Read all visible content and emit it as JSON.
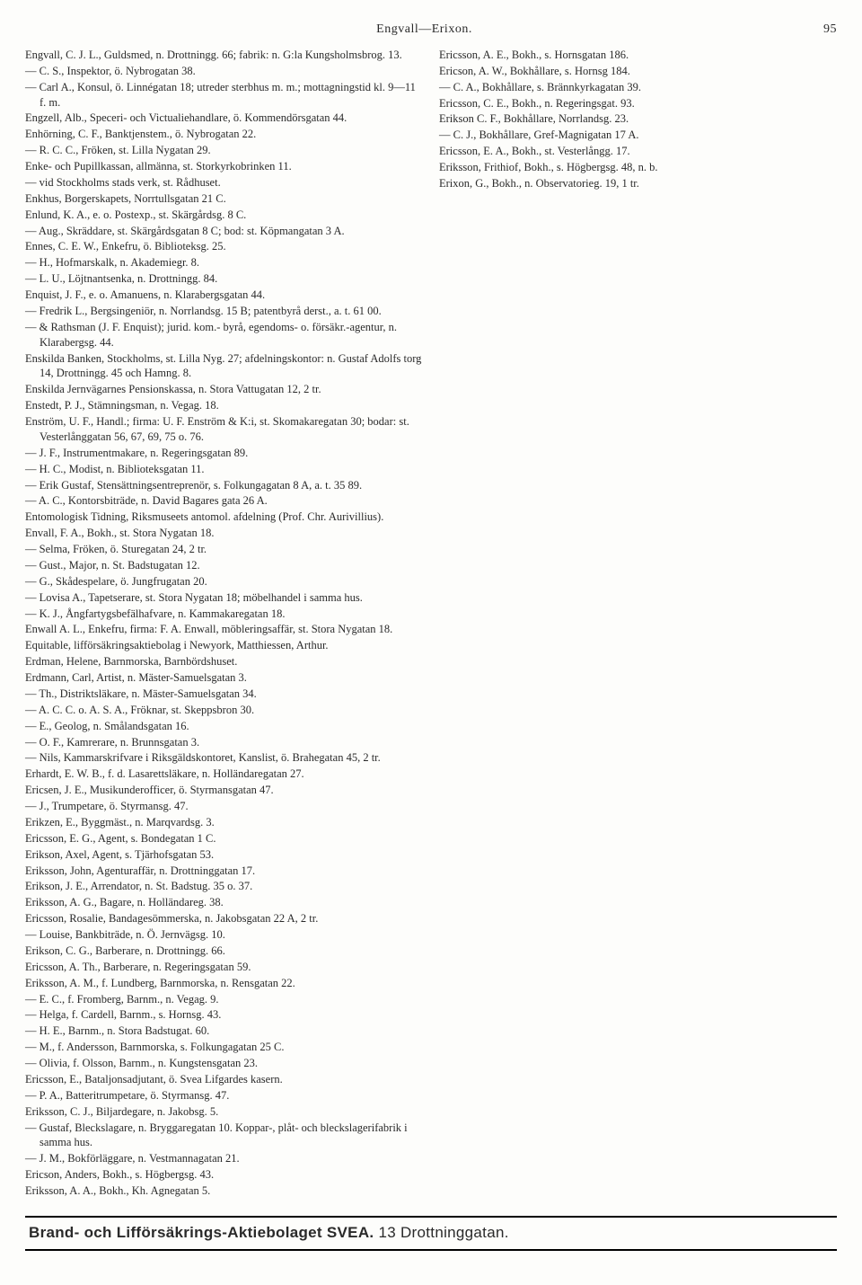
{
  "header": {
    "title": "Engvall—Erixon.",
    "pagenum": "95"
  },
  "entries": [
    "Engvall, C. J. L., Guldsmed, n. Drottningg. 66; fabrik: n. G:la Kungsholmsbrog. 13.",
    "— C. S., Inspektor, ö. Nybrogatan 38.",
    "— Carl A., Konsul, ö. Linnégatan 18; utreder sterbhus m. m.; mottagningstid kl. 9—11 f. m.",
    "Engzell, Alb., Speceri- och Victualiehandlare, ö. Kommendörsgatan 44.",
    "Enhörning, C. F., Banktjenstem., ö. Nybrogatan 22.",
    "— R. C. C., Fröken, st. Lilla Nygatan 29.",
    "Enke- och Pupillkassan, allmänna, st. Storkyrkobrinken 11.",
    "— vid Stockholms stads verk, st. Rådhuset.",
    "Enkhus, Borgerskapets, Norrtullsgatan 21 C.",
    "Enlund, K. A., e. o. Postexp., st. Skärgårdsg. 8 C.",
    "— Aug., Skräddare, st. Skärgårdsgatan 8 C; bod: st. Köpmangatan 3 A.",
    "Ennes, C. E. W., Enkefru, ö. Biblioteksg. 25.",
    "— H., Hofmarskalk, n. Akademiegr. 8.",
    "— L. U., Löjtnantsenka, n. Drottningg. 84.",
    "Enquist, J. F., e. o. Amanuens, n. Klarabergsgatan 44.",
    "— Fredrik L., Bergsingeniör, n. Norrlandsg. 15 B; patentbyrå derst., a. t. 61 00.",
    "— & Rathsman (J. F. Enquist); jurid. kom.- byrå, egendoms- o. försäkr.-agentur, n. Klarabergsg. 44.",
    "Enskilda Banken, Stockholms, st. Lilla Nyg. 27; afdelningskontor: n. Gustaf Adolfs torg 14, Drottningg. 45 och Hamng. 8.",
    "Enskilda Jernvägarnes Pensionskassa, n. Stora Vattugatan 12, 2 tr.",
    "Enstedt, P. J., Stämningsman, n. Vegag. 18.",
    "Enström, U. F., Handl.; firma: U. F. Enström & K:i, st. Skomakaregatan 30; bodar: st. Vesterlånggatan 56, 67, 69, 75 o. 76.",
    "— J. F., Instrumentmakare, n. Regeringsgatan 89.",
    "— H. C., Modist, n. Biblioteksgatan 11.",
    "— Erik Gustaf, Stensättningsentreprenör, s. Folkungagatan 8 A, a. t. 35 89.",
    "— A. C., Kontorsbiträde, n. David Bagares gata 26 A.",
    "Entomologisk Tidning, Riksmuseets antomol. afdelning (Prof. Chr. Aurivillius).",
    "Envall, F. A., Bokh., st. Stora Nygatan 18.",
    "— Selma, Fröken, ö. Sturegatan 24, 2 tr.",
    "— Gust., Major, n. St. Badstugatan 12.",
    "— G., Skådespelare, ö. Jungfrugatan 20.",
    "— Lovisa A., Tapetserare, st. Stora Nygatan 18; möbelhandel i samma hus.",
    "— K. J., Ångfartygsbefälhafvare, n. Kammakaregatan 18.",
    "Enwall A. L., Enkefru, firma: F. A. Enwall, möbleringsaffär, st. Stora Nygatan 18.",
    "Equitable, lifförsäkringsaktiebolag i Newyork, Matthiessen, Arthur.",
    "Erdman, Helene, Barnmorska, Barnbördshuset.",
    "Erdmann, Carl, Artist, n. Mäster-Samuelsgatan 3.",
    "— Th., Distriktsläkare, n. Mäster-Samuelsgatan 34.",
    "— A. C. C. o. A. S. A., Fröknar, st. Skeppsbron 30.",
    "— E., Geolog, n. Smålandsgatan 16.",
    "— O. F., Kamrerare, n. Brunnsgatan 3.",
    "— Nils, Kammarskrifvare i Riksgäldskontoret, Kanslist, ö. Brahegatan 45, 2 tr.",
    "Erhardt, E. W. B., f. d. Lasarettsläkare, n. Holländaregatan 27.",
    "Ericsen, J. E., Musikunderofficer, ö. Styrmansgatan 47.",
    "— J., Trumpetare, ö. Styrmansg. 47.",
    "Erikzen, E., Byggmäst., n. Marqvardsg. 3.",
    "Ericsson, E. G., Agent, s. Bondegatan 1 C.",
    "Erikson, Axel, Agent, s. Tjärhofsgatan 53.",
    "Eriksson, John, Agenturaffär, n. Drottninggatan 17.",
    "Erikson, J. E., Arrendator, n. St. Badstug. 35 o. 37.",
    "Eriksson, A. G., Bagare, n. Holländareg. 38.",
    "Ericsson, Rosalie, Bandagesömmerska, n. Jakobsgatan 22 A, 2 tr.",
    "— Louise, Bankbiträde, n. Ö. Jernvägsg. 10.",
    "Erikson, C. G., Barberare, n. Drottningg. 66.",
    "Ericsson, A. Th., Barberare, n. Regeringsgatan 59.",
    "Eriksson, A. M., f. Lundberg, Barnmorska, n. Rensgatan 22.",
    "— E. C., f. Fromberg, Barnm., n. Vegag. 9.",
    "— Helga, f. Cardell, Barnm., s. Hornsg. 43.",
    "— H. E., Barnm., n. Stora Badstugat. 60.",
    "— M., f. Andersson, Barnmorska, s. Folkungagatan 25 C.",
    "— Olivia, f. Olsson, Barnm., n. Kungstensgatan 23.",
    "Ericsson, E., Bataljonsadjutant, ö. Svea Lifgardes kasern.",
    "— P. A., Batteritrumpetare, ö. Styrmansg. 47.",
    "Eriksson, C. J., Biljardegare, n. Jakobsg. 5.",
    "— Gustaf, Bleckslagare, n. Bryggaregatan 10. Koppar-, plåt- och bleckslagerifabrik i samma hus.",
    "— J. M., Bokförläggare, n. Vestmannagatan 21.",
    "Ericson, Anders, Bokh., s. Högbergsg. 43.",
    "Eriksson, A. A., Bokh., Kh. Agnegatan 5.",
    "Ericsson, A. E., Bokh., s. Hornsgatan 186.",
    "Ericson, A. W., Bokhållare, s. Hornsg 184.",
    "— C. A., Bokhållare, s. Brännkyrkagatan 39.",
    "Ericsson, C. E., Bokh., n. Regeringsgat. 93.",
    "Erikson C. F., Bokhållare, Norrlandsg. 23.",
    "— C. J., Bokhållare, Gref-Magnigatan 17 A.",
    "Ericsson, E. A., Bokh., st. Vesterlångg. 17.",
    "Eriksson, Frithiof, Bokh., s. Högbergsg. 48, n. b.",
    "Erixon, G., Bokh., n. Observatorieg. 19, 1 tr."
  ],
  "footer": {
    "bold1": "Brand- och Lifförsäkrings-Aktiebolaget SVEA.",
    "light": " 13 Drottninggatan."
  }
}
